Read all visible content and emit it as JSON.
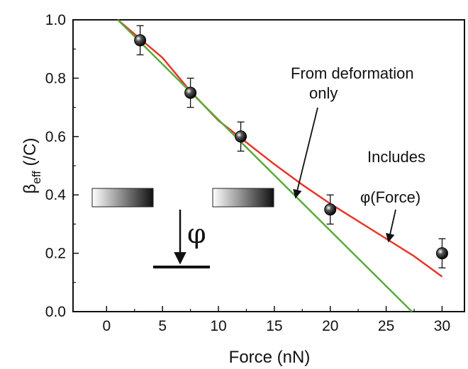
{
  "chart_data": {
    "type": "scatter",
    "title": "",
    "xlabel": "Force (nN)",
    "ylabel": {
      "main": "β",
      "sub": "eff",
      "unit": " (/C)"
    },
    "xlim": [
      -3,
      32
    ],
    "ylim": [
      0,
      1.0
    ],
    "x_ticks": [
      0,
      5,
      10,
      15,
      20,
      25,
      30
    ],
    "y_ticks": [
      0.0,
      0.2,
      0.4,
      0.6,
      0.8,
      1.0
    ],
    "x_tick_labels": [
      "0",
      "5",
      "10",
      "15",
      "20",
      "25",
      "30"
    ],
    "y_tick_labels": [
      "0.0",
      "0.2",
      "0.4",
      "0.6",
      "0.8",
      "1.0"
    ],
    "grid": false,
    "series": [
      {
        "kind": "points",
        "color": "#111111",
        "points": [
          {
            "x": 3,
            "y": 0.93,
            "err": 0.05
          },
          {
            "x": 7.5,
            "y": 0.75,
            "err": 0.05
          },
          {
            "x": 12,
            "y": 0.6,
            "err": 0.05
          },
          {
            "x": 20,
            "y": 0.35,
            "err": 0.05
          },
          {
            "x": 30,
            "y": 0.2,
            "err": 0.05
          }
        ]
      },
      {
        "kind": "line",
        "color": "#e8352a",
        "x": [
          1,
          3,
          5,
          7.5,
          10,
          12,
          15,
          17.5,
          20,
          22.5,
          25,
          27.5,
          30
        ],
        "y": [
          1.0,
          0.935,
          0.87,
          0.755,
          0.655,
          0.595,
          0.505,
          0.435,
          0.37,
          0.31,
          0.25,
          0.19,
          0.12
        ]
      },
      {
        "kind": "line",
        "color": "#5aab3b",
        "x": [
          1,
          27.3
        ],
        "y": [
          1.0,
          0.0
        ]
      }
    ],
    "annotations": [
      {
        "lines": [
          "From deformation",
          "only"
        ]
      },
      {
        "lines": [
          "Includes",
          "φ(Force)"
        ]
      }
    ],
    "inset": {
      "symbol": "φ"
    }
  }
}
